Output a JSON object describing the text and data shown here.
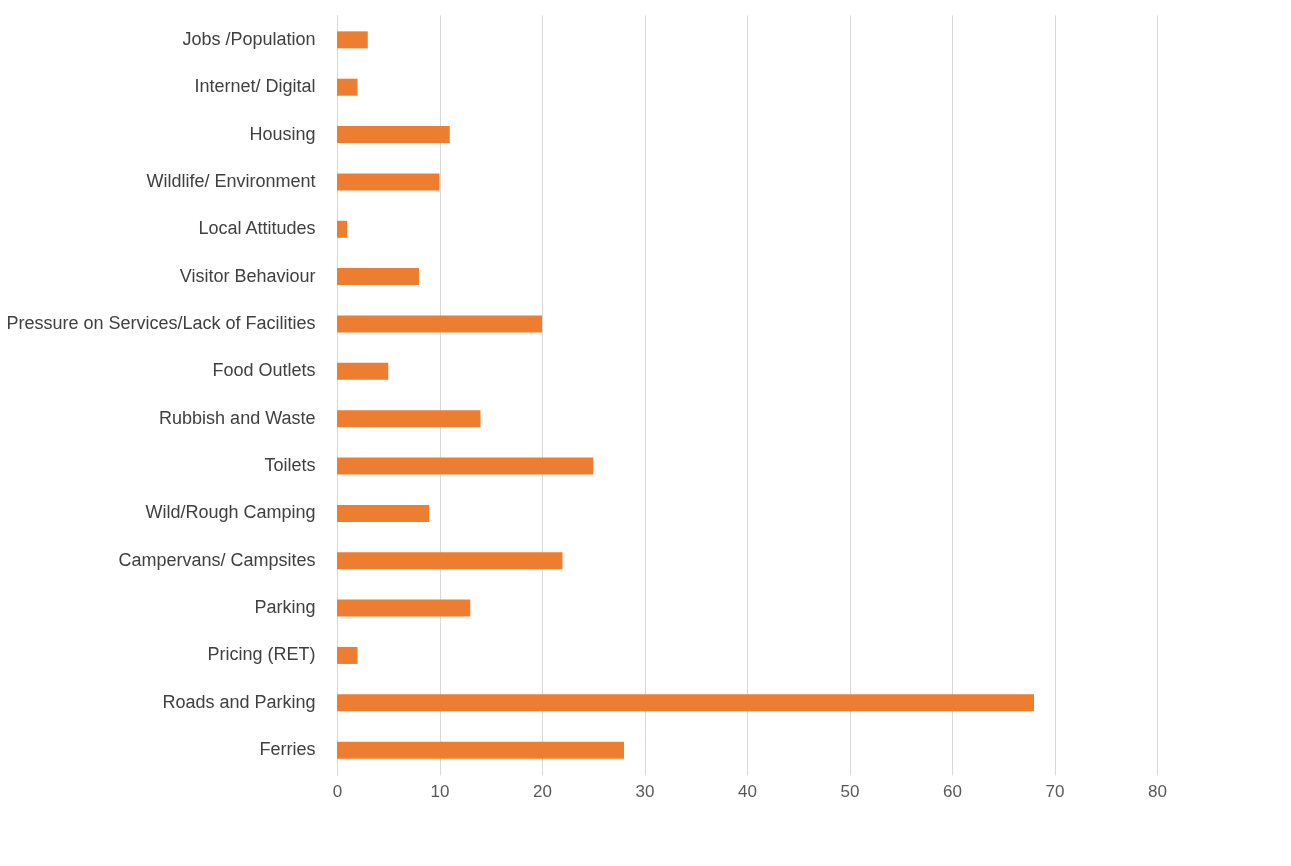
{
  "chart_data": {
    "type": "bar",
    "orientation": "horizontal",
    "categories": [
      "Jobs /Population",
      "Internet/  Digital",
      "Housing",
      "Wildlife/ Environment",
      "Local Attitudes",
      "Visitor Behaviour",
      "Pressure on Services/Lack of Facilities",
      "Food Outlets",
      "Rubbish and Waste",
      "Toilets",
      "Wild/Rough Camping",
      "Campervans/  Campsites",
      "Parking",
      "Pricing (RET)",
      "Roads and Parking",
      "Ferries"
    ],
    "values": [
      3,
      2,
      11,
      10,
      1,
      8,
      20,
      5,
      14,
      25,
      9,
      22,
      13,
      2,
      68,
      28
    ],
    "color": "#ed7d31",
    "xlim": [
      0,
      80
    ],
    "xticks": [
      0,
      10,
      20,
      30,
      40,
      50,
      60,
      70,
      80
    ],
    "grid": "x"
  }
}
